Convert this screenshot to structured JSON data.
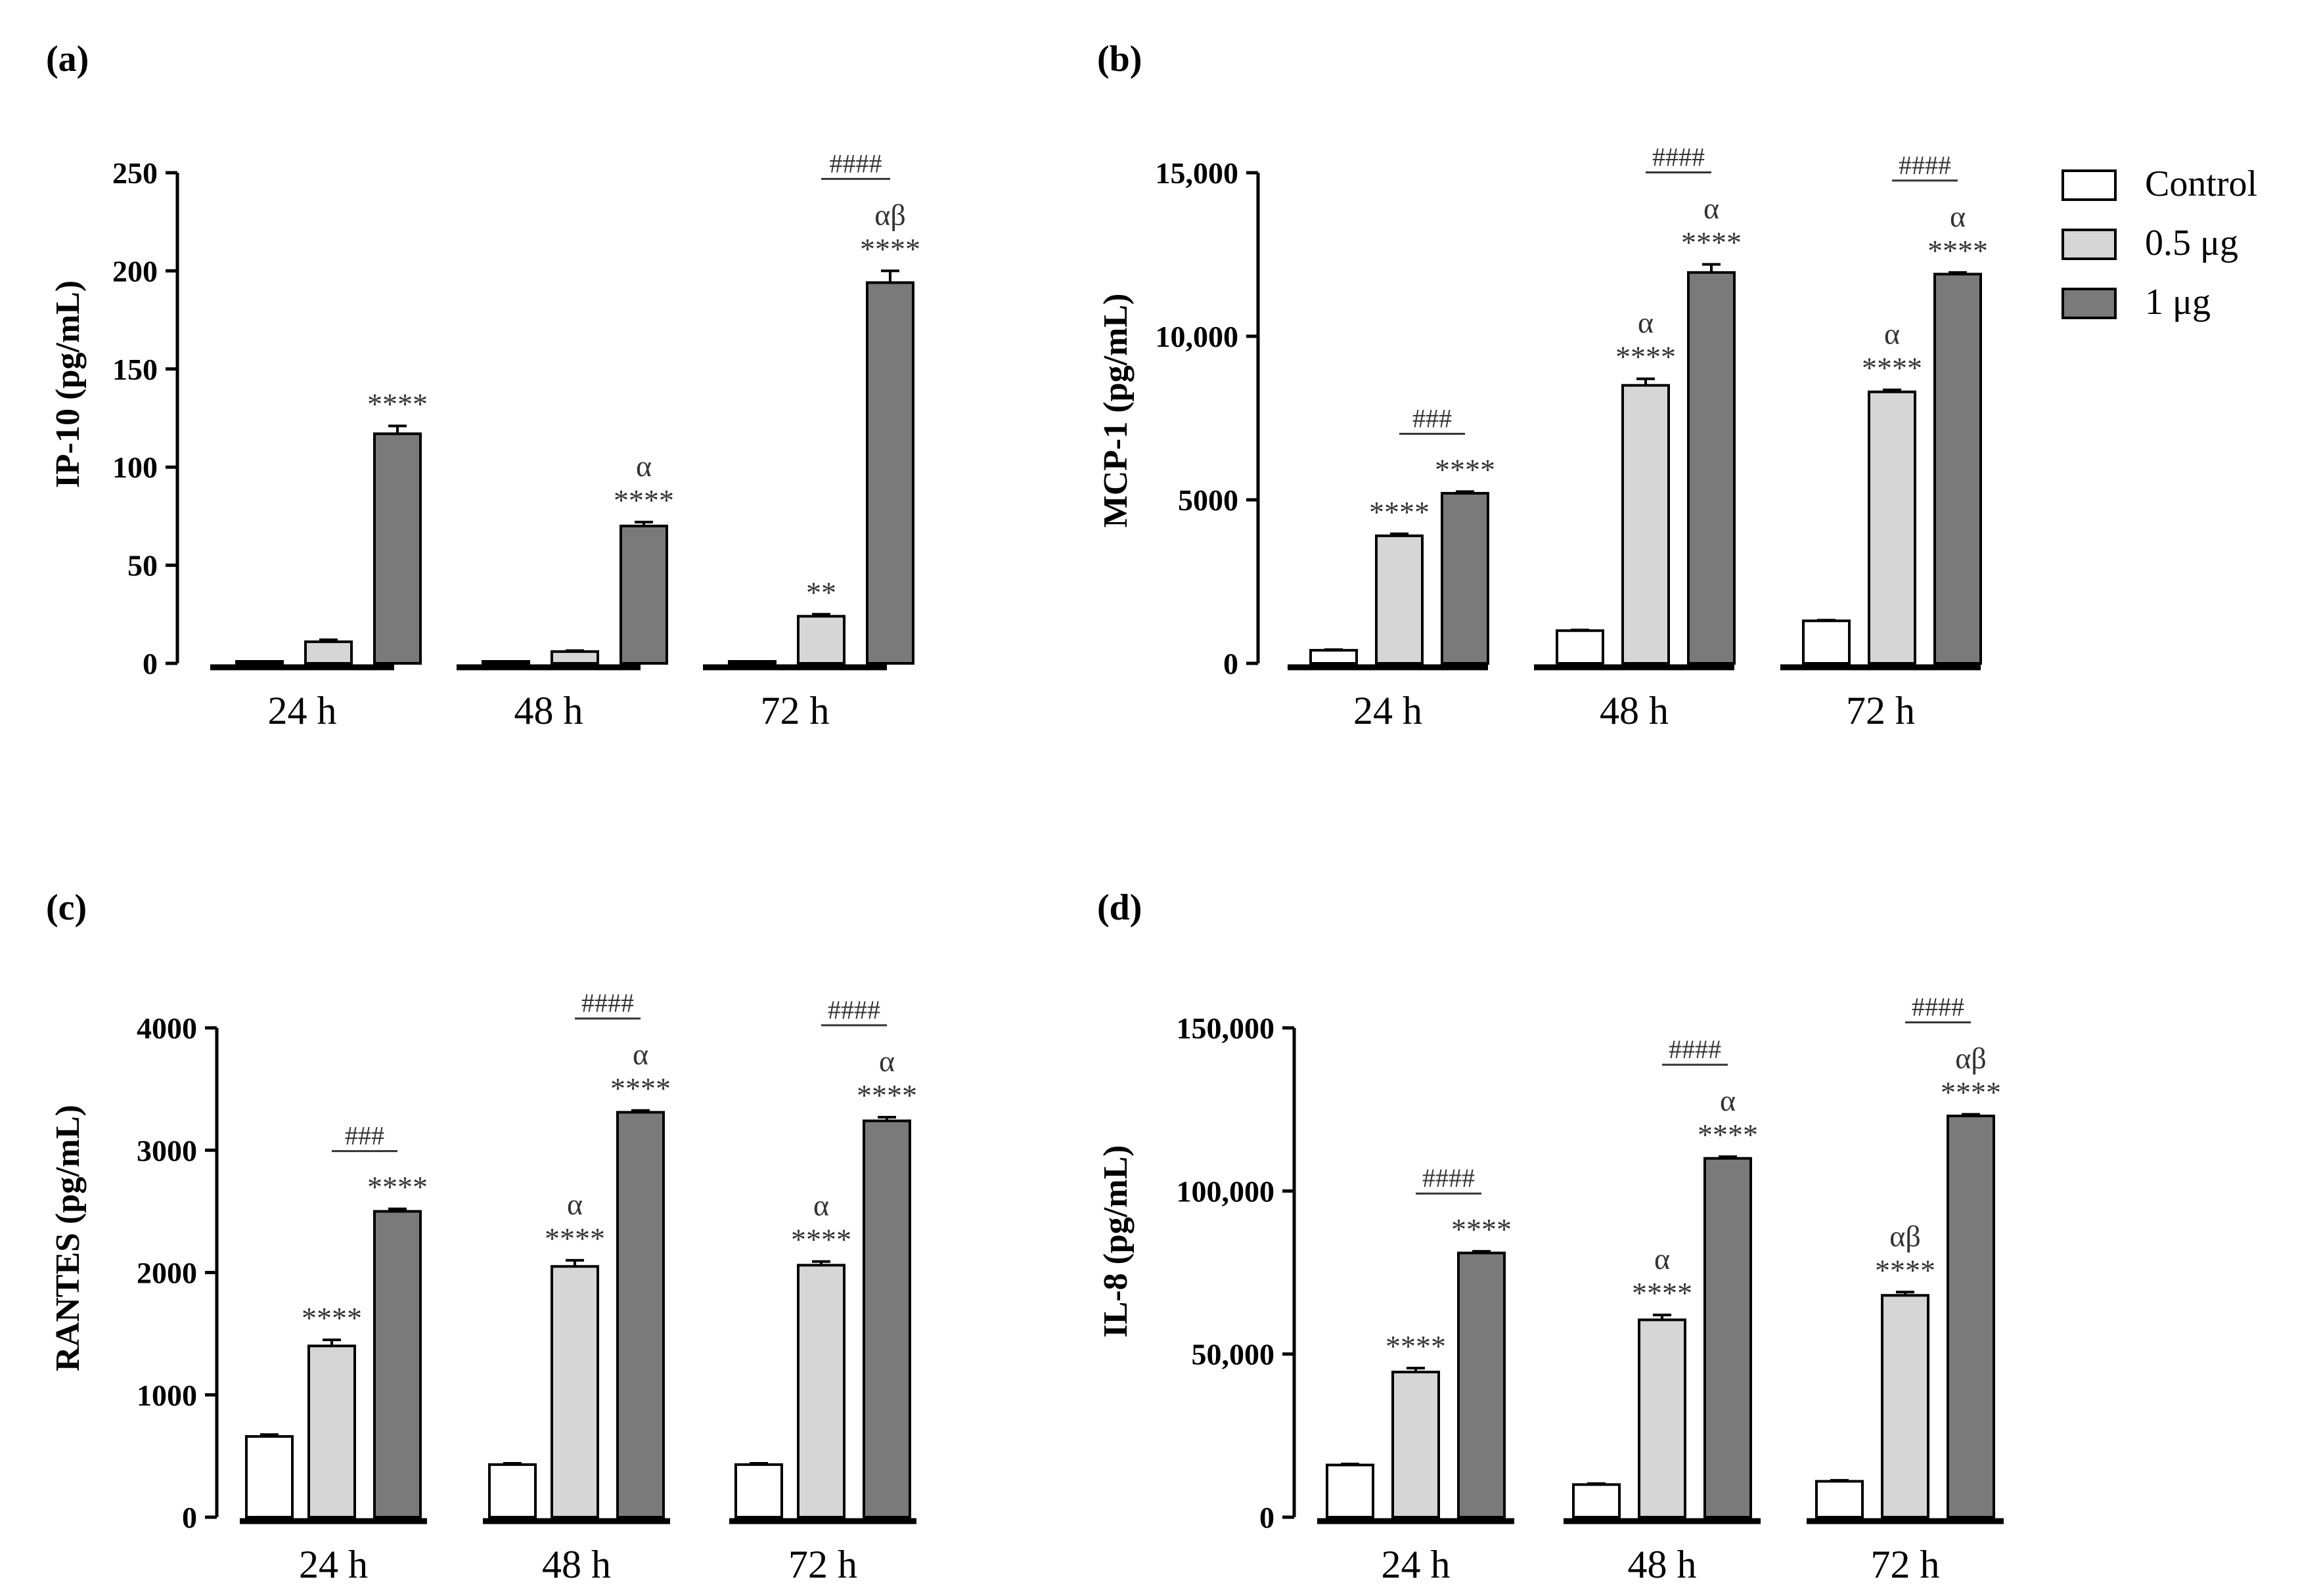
{
  "colors": {
    "control": "#ffffff",
    "dose_low": "#d6d6d6",
    "dose_high": "#7a7a7a",
    "stroke": "#000000",
    "annotation": "#333333"
  },
  "legend": {
    "items": [
      {
        "label": "Control",
        "color": "#ffffff"
      },
      {
        "label": "0.5 μg",
        "color": "#d6d6d6"
      },
      {
        "label": "1 μg",
        "color": "#7a7a7a"
      }
    ]
  },
  "chart_data": [
    {
      "panel_label": "(a)",
      "type": "bar",
      "title": "",
      "xlabel": "",
      "ylabel": "IP-10 (pg/mL)",
      "ylim": [
        0,
        250
      ],
      "yticks": [
        "0",
        "50",
        "100",
        "150",
        "200",
        "250"
      ],
      "ytick_values": [
        0,
        50,
        100,
        150,
        200,
        250
      ],
      "categories": [
        "24 h",
        "48 h",
        "72 h"
      ],
      "series": [
        {
          "name": "Control",
          "values": [
            1,
            1,
            1
          ],
          "errors": [
            0,
            0,
            0
          ],
          "annotations": [
            "",
            "",
            ""
          ]
        },
        {
          "name": "0.5 μg",
          "values": [
            11,
            6,
            24
          ],
          "errors": [
            1,
            0.5,
            1
          ],
          "annotations": [
            "",
            "",
            "**"
          ]
        },
        {
          "name": "1 μg",
          "values": [
            117,
            70,
            194
          ],
          "errors": [
            4,
            2,
            6
          ],
          "annotations": [
            "****",
            "α\n****",
            "αβ\n****"
          ]
        }
      ],
      "group_annotations": [
        "",
        "",
        "####"
      ],
      "legend": false
    },
    {
      "panel_label": "(b)",
      "type": "bar",
      "title": "",
      "xlabel": "",
      "ylabel": "MCP-1 (pg/mL)",
      "ylim": [
        0,
        15000
      ],
      "yticks": [
        "0",
        "5000",
        "10,000",
        "15,000"
      ],
      "ytick_values": [
        0,
        5000,
        10000,
        15000
      ],
      "categories": [
        "24 h",
        "48 h",
        "72 h"
      ],
      "series": [
        {
          "name": "Control",
          "values": [
            400,
            1000,
            1300
          ],
          "errors": [
            20,
            20,
            20
          ],
          "annotations": [
            "",
            "",
            ""
          ]
        },
        {
          "name": "0.5 μg",
          "values": [
            3900,
            8500,
            8300
          ],
          "errors": [
            60,
            200,
            60
          ],
          "annotations": [
            "****",
            "α\n****",
            "α\n****"
          ]
        },
        {
          "name": "1 μg",
          "values": [
            5200,
            11950,
            11900
          ],
          "errors": [
            50,
            250,
            50
          ],
          "annotations": [
            "****",
            "α\n****",
            "α\n****"
          ]
        }
      ],
      "group_annotations": [
        "###",
        "####",
        "####"
      ],
      "legend": true
    },
    {
      "panel_label": "(c)",
      "type": "bar",
      "title": "",
      "xlabel": "",
      "ylabel": "RANTES (pg/mL)",
      "ylim": [
        0,
        4000
      ],
      "yticks": [
        "0",
        "1000",
        "2000",
        "3000",
        "4000"
      ],
      "ytick_values": [
        0,
        1000,
        2000,
        3000,
        4000
      ],
      "categories": [
        "24 h",
        "48 h",
        "72 h"
      ],
      "series": [
        {
          "name": "Control",
          "values": [
            660,
            430,
            430
          ],
          "errors": [
            15,
            10,
            10
          ],
          "annotations": [
            "",
            "",
            ""
          ]
        },
        {
          "name": "0.5 μg",
          "values": [
            1400,
            2050,
            2060
          ],
          "errors": [
            50,
            50,
            30
          ],
          "annotations": [
            "****",
            "α\n****",
            "α\n****"
          ]
        },
        {
          "name": "1 μg",
          "values": [
            2500,
            3310,
            3240
          ],
          "errors": [
            20,
            15,
            30
          ],
          "annotations": [
            "****",
            "α\n****",
            "α\n****"
          ]
        }
      ],
      "group_annotations": [
        "###",
        "####",
        "####"
      ],
      "legend": false
    },
    {
      "panel_label": "(d)",
      "type": "bar",
      "title": "",
      "xlabel": "",
      "ylabel": "IL-8 (pg/mL)",
      "ylim": [
        0,
        150000
      ],
      "yticks": [
        "0",
        "50,000",
        "100,000",
        "150,000"
      ],
      "ytick_values": [
        0,
        50000,
        100000,
        150000
      ],
      "categories": [
        "24 h",
        "48 h",
        "72 h"
      ],
      "series": [
        {
          "name": "Control",
          "values": [
            16000,
            10000,
            11000
          ],
          "errors": [
            300,
            300,
            300
          ],
          "annotations": [
            "",
            "",
            ""
          ]
        },
        {
          "name": "0.5 μg",
          "values": [
            44500,
            60500,
            68000
          ],
          "errors": [
            1200,
            1500,
            1000
          ],
          "annotations": [
            "****",
            "α\n****",
            "αβ\n****"
          ]
        },
        {
          "name": "1 μg",
          "values": [
            81000,
            110000,
            123000
          ],
          "errors": [
            500,
            500,
            500
          ],
          "annotations": [
            "****",
            "α\n****",
            "αβ\n****"
          ]
        }
      ],
      "group_annotations": [
        "####",
        "####",
        "####"
      ],
      "legend": false
    }
  ]
}
